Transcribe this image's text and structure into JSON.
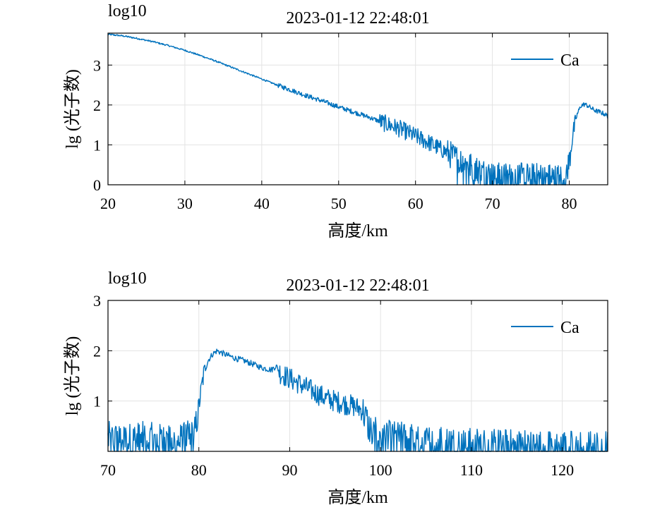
{
  "chart_data": [
    {
      "type": "line",
      "title": "2023-01-12 22:48:01",
      "corner_label": "log10",
      "xlabel": "高度/km",
      "ylabel": "lg (光子数)",
      "xlim": [
        20,
        85
      ],
      "ylim": [
        0,
        3.8
      ],
      "xticks": [
        20,
        30,
        40,
        50,
        60,
        70,
        80
      ],
      "yticks": [
        0,
        1,
        2,
        3
      ],
      "grid": true,
      "legend_position": "top-right",
      "series": [
        {
          "name": "Ca",
          "color": "#0072BD",
          "x": [
            20,
            22,
            24,
            26,
            28,
            30,
            32,
            34,
            36,
            38,
            40,
            42,
            44,
            46,
            48,
            50,
            52,
            54,
            56,
            58,
            60,
            62,
            64,
            66,
            68,
            70,
            72,
            74,
            76,
            78,
            79.5,
            80,
            80.5,
            81,
            81.5,
            82,
            82.5,
            83,
            83.5,
            84,
            84.5,
            85
          ],
          "values": [
            3.77,
            3.73,
            3.66,
            3.58,
            3.48,
            3.37,
            3.24,
            3.1,
            2.95,
            2.8,
            2.65,
            2.5,
            2.36,
            2.22,
            2.09,
            1.95,
            1.82,
            1.69,
            1.54,
            1.4,
            1.22,
            1.03,
            0.82,
            0.58,
            0.38,
            0.22,
            0.2,
            0.22,
            0.2,
            0.18,
            0.2,
            0.6,
            1.3,
            1.75,
            1.98,
            2.02,
            1.97,
            1.9,
            1.85,
            1.82,
            1.78,
            1.72
          ]
        }
      ]
    },
    {
      "type": "line",
      "title": "2023-01-12 22:48:01",
      "corner_label": "log10",
      "xlabel": "高度/km",
      "ylabel": "lg (光子数)",
      "xlim": [
        70,
        125
      ],
      "ylim": [
        0,
        3
      ],
      "xticks": [
        70,
        80,
        90,
        100,
        110,
        120
      ],
      "yticks": [
        1,
        2,
        3
      ],
      "grid": true,
      "legend_position": "top-right",
      "series": [
        {
          "name": "Ca",
          "color": "#0072BD",
          "x": [
            70,
            72,
            74,
            76,
            78,
            79.5,
            80,
            80.5,
            81,
            81.5,
            82,
            83,
            84,
            85,
            86,
            87,
            88,
            88.5,
            89,
            90,
            91,
            92,
            93,
            94,
            95,
            96,
            97,
            98,
            98.5,
            99,
            100,
            102,
            104,
            106,
            108,
            110,
            112,
            114,
            116,
            118,
            120,
            122,
            125
          ],
          "values": [
            0.25,
            0.22,
            0.25,
            0.2,
            0.22,
            0.3,
            0.9,
            1.5,
            1.8,
            1.93,
            2.0,
            1.92,
            1.85,
            1.8,
            1.73,
            1.66,
            1.62,
            1.7,
            1.55,
            1.45,
            1.35,
            1.25,
            1.15,
            1.05,
            1.0,
            0.95,
            0.9,
            0.82,
            0.6,
            0.35,
            0.3,
            0.25,
            0.22,
            0.18,
            0.15,
            0.12,
            0.12,
            0.1,
            0.1,
            0.08,
            0.08,
            0.08,
            0.08
          ]
        }
      ]
    }
  ]
}
